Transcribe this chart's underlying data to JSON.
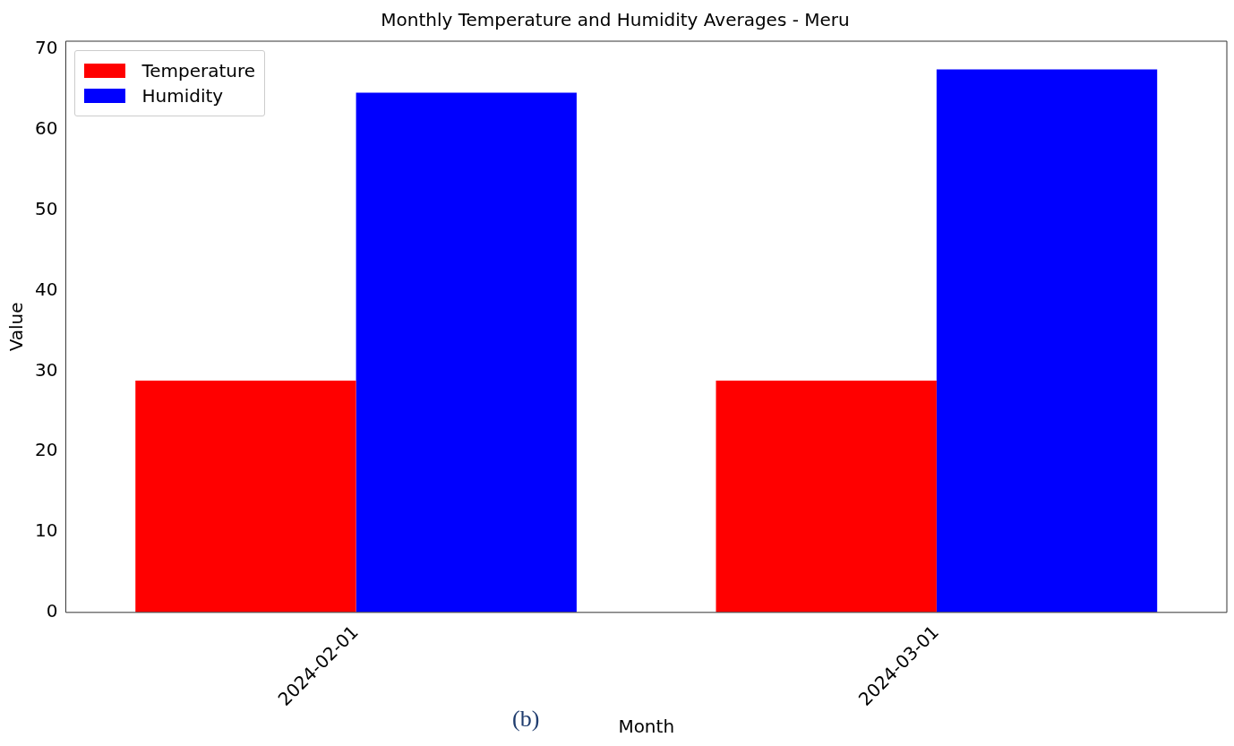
{
  "chart_data": {
    "type": "bar",
    "title": "Monthly Temperature and Humidity Averages - Meru",
    "xlabel": "Month",
    "ylabel": "Value",
    "categories": [
      "2024-02-01",
      "2024-03-01"
    ],
    "series": [
      {
        "name": "Temperature",
        "color": "#ff0000",
        "values": [
          28.8,
          28.8
        ]
      },
      {
        "name": "Humidity",
        "color": "#0000ff",
        "values": [
          64.6,
          67.5
        ]
      }
    ],
    "ylim": [
      0,
      71
    ],
    "yticks": [
      0,
      10,
      20,
      30,
      40,
      50,
      60,
      70
    ],
    "legend": "top left",
    "annotations": [
      "(b)"
    ]
  }
}
